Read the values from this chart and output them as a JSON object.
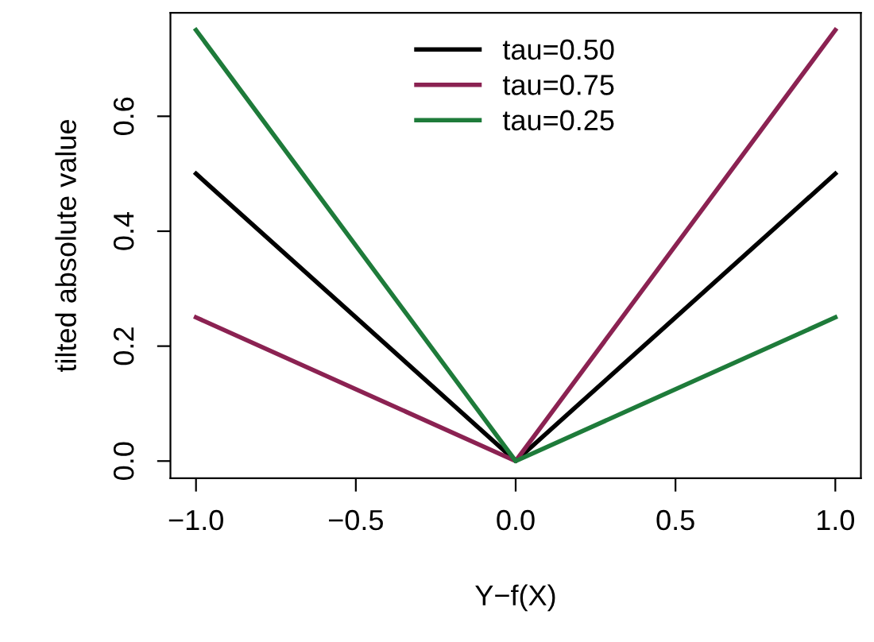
{
  "chart_data": {
    "type": "line",
    "x": [
      -1,
      0,
      1
    ],
    "xlabel": "Y−f(X)",
    "ylabel": "tilted absolute value",
    "series": [
      {
        "name": "tau=0.50",
        "color": "#000000",
        "values": [
          0.5,
          0,
          0.5
        ]
      },
      {
        "name": "tau=0.75",
        "color": "#8b2252",
        "values": [
          0.25,
          0,
          0.75
        ]
      },
      {
        "name": "tau=0.25",
        "color": "#1e7b3a",
        "values": [
          0.75,
          0,
          0.25
        ]
      }
    ],
    "xlim": [
      -1.08,
      1.08
    ],
    "ylim": [
      -0.03,
      0.78
    ],
    "xticks": [
      {
        "value": -1.0,
        "label": "−1.0"
      },
      {
        "value": -0.5,
        "label": "−0.5"
      },
      {
        "value": 0.0,
        "label": "0.0"
      },
      {
        "value": 0.5,
        "label": "0.5"
      },
      {
        "value": 1.0,
        "label": "1.0"
      }
    ],
    "yticks": [
      {
        "value": 0.0,
        "label": "0.0"
      },
      {
        "value": 0.2,
        "label": "0.2"
      },
      {
        "value": 0.4,
        "label": "0.4"
      },
      {
        "value": 0.6,
        "label": "0.6"
      }
    ],
    "legend": "top",
    "grid": false,
    "marker": "none",
    "line_style": "solid"
  }
}
